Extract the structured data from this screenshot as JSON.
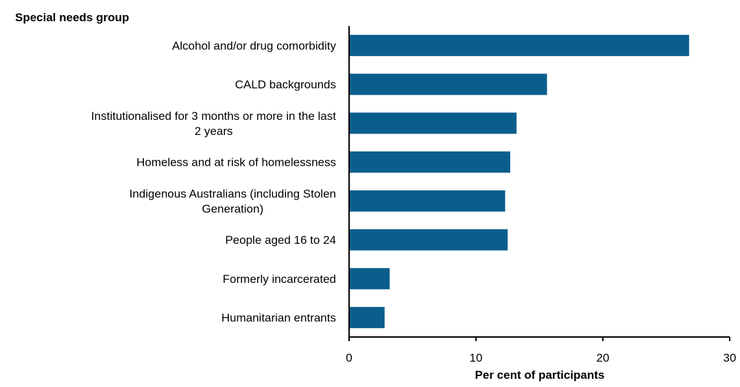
{
  "chart_data": {
    "type": "bar",
    "orientation": "horizontal",
    "ylabel": "Special needs group",
    "xlabel": "Per cent of participants",
    "categories": [
      [
        "Alcohol and/or drug comorbidity"
      ],
      [
        "CALD backgrounds"
      ],
      [
        "Institutionalised for 3 months or more in the last",
        "2 years"
      ],
      [
        "Homeless and at risk of homelessness"
      ],
      [
        "Indigenous Australians (including Stolen",
        "Generation)"
      ],
      [
        "People aged 16 to 24"
      ],
      [
        "Formerly incarcerated"
      ],
      [
        "Humanitarian entrants"
      ]
    ],
    "values": [
      26.8,
      15.6,
      13.2,
      12.7,
      12.3,
      12.5,
      3.2,
      2.8
    ],
    "xlim": [
      0,
      30
    ],
    "xticks": [
      "0",
      "10",
      "20",
      "30"
    ],
    "grid": false,
    "colors": {
      "bar": "#0b5e8c",
      "axis": "#000000"
    }
  }
}
